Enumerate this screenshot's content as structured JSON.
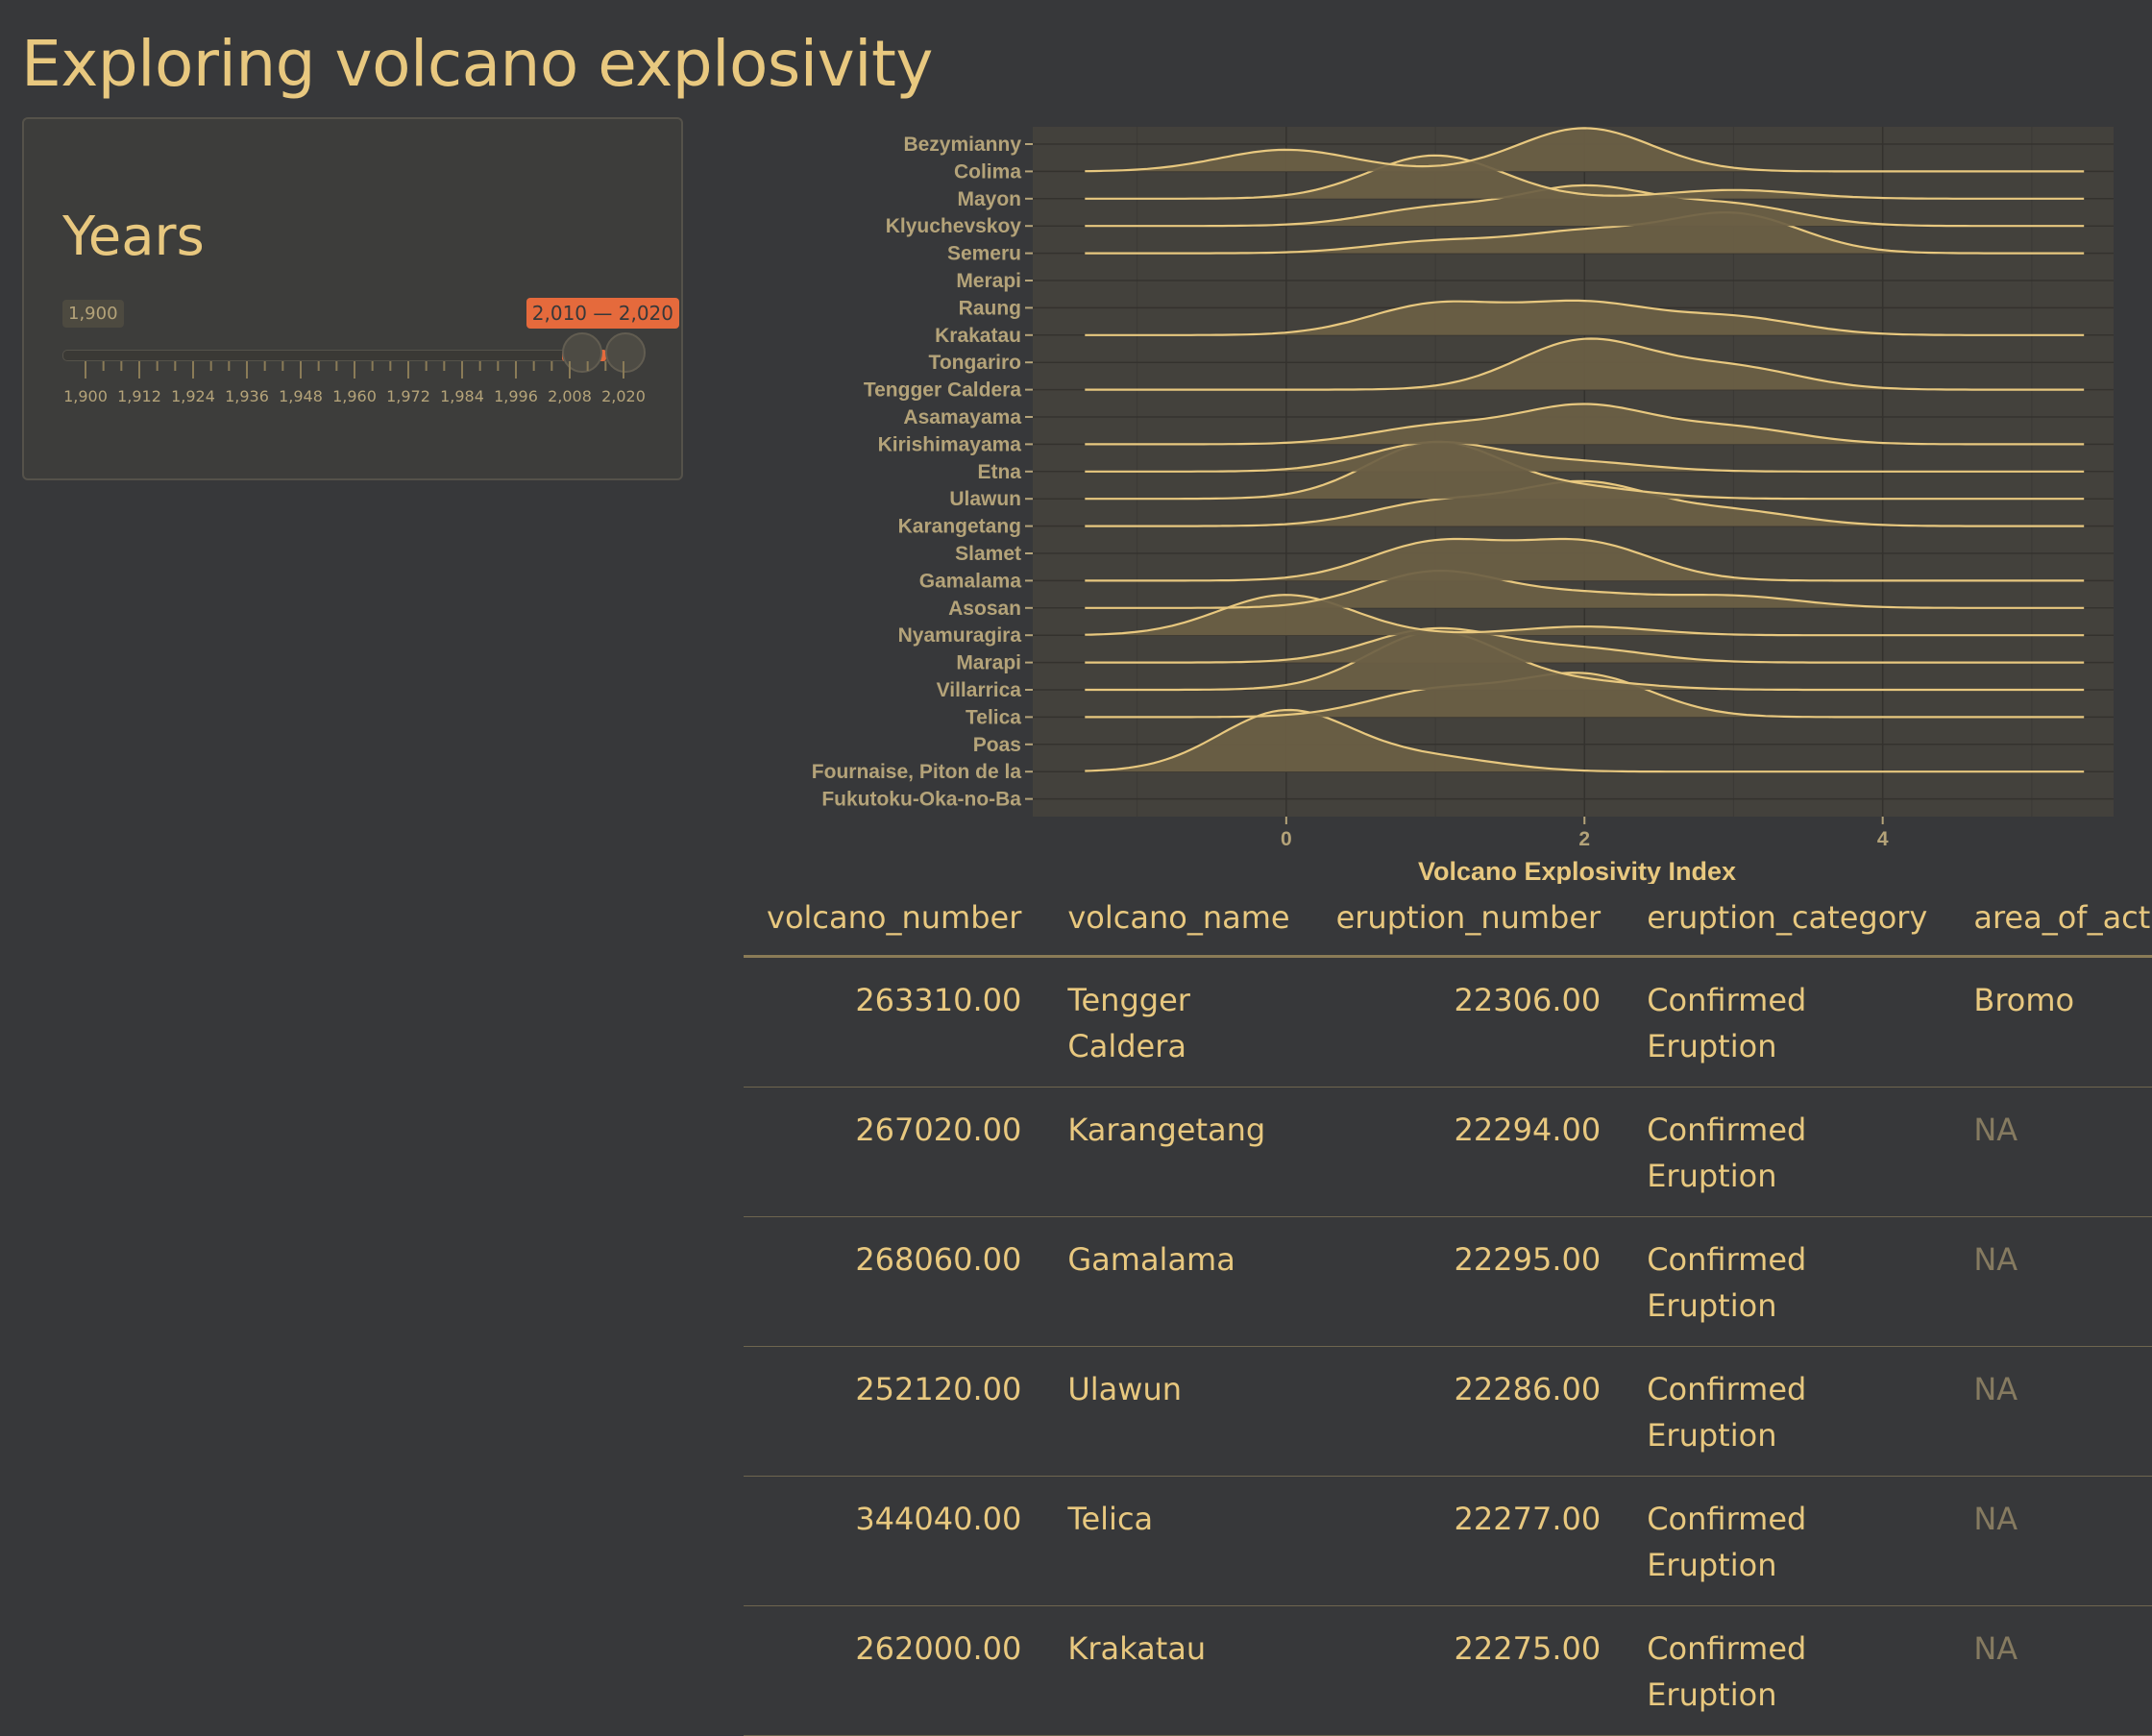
{
  "page": {
    "title": "Exploring volcano explosivity"
  },
  "slider": {
    "label": "Years",
    "min_label": "1,900",
    "range_label": "2,010 — 2,020",
    "range": [
      2010,
      2020
    ],
    "bounds": [
      1900,
      2020
    ],
    "ticks": [
      "1,900",
      "1,912",
      "1,924",
      "1,936",
      "1,948",
      "1,960",
      "1,972",
      "1,984",
      "1,996",
      "2,008",
      "2,020"
    ],
    "accent": "#e56a3c"
  },
  "chart_data": {
    "type": "ridgeline",
    "xlabel": "Volcano Explosivity Index",
    "ylabel": "",
    "x_ticks": [
      "0",
      "2",
      "4"
    ],
    "x_tick_values": [
      0,
      2,
      4
    ],
    "xlim": [
      -1.7,
      5.6
    ],
    "density_range": [
      -1.35,
      5.35
    ],
    "fill_color": "#6b5f45",
    "line_color": "#e8c87f",
    "categories": [
      "Bezymianny",
      "Colima",
      "Mayon",
      "Klyuchevskoy",
      "Semeru",
      "Merapi",
      "Raung",
      "Krakatau",
      "Tongariro",
      "Tengger Caldera",
      "Asamayama",
      "Kirishimayama",
      "Etna",
      "Ulawun",
      "Karangetang",
      "Slamet",
      "Gamalama",
      "Asosan",
      "Nyamuragira",
      "Marapi",
      "Villarrica",
      "Telica",
      "Poas",
      "Fournaise, Piton de la",
      "Fukutoku-Oka-no-Ba"
    ],
    "series": [
      {
        "category": "Colima",
        "peaks": [
          [
            0,
            0.75
          ],
          [
            2,
            1.5
          ]
        ]
      },
      {
        "category": "Mayon",
        "peaks": [
          [
            1,
            1.5
          ],
          [
            3,
            0.3
          ]
        ]
      },
      {
        "category": "Klyuchevskoy",
        "peaks": [
          [
            1,
            0.6
          ],
          [
            2,
            1.3
          ],
          [
            3,
            0.7
          ]
        ]
      },
      {
        "category": "Semeru",
        "peaks": [
          [
            1,
            0.4
          ],
          [
            2,
            0.7
          ],
          [
            3,
            1.35
          ]
        ]
      },
      {
        "category": "Krakatau",
        "peaks": [
          [
            1,
            1.05
          ],
          [
            2,
            1.05
          ],
          [
            3,
            0.6
          ]
        ]
      },
      {
        "category": "Tengger Caldera",
        "peaks": [
          [
            2,
            1.7
          ],
          [
            3,
            0.75
          ]
        ]
      },
      {
        "category": "Kirishimayama",
        "peaks": [
          [
            1,
            0.6
          ],
          [
            2,
            1.3
          ],
          [
            3,
            0.55
          ]
        ]
      },
      {
        "category": "Etna",
        "peaks": [
          [
            1,
            1.0
          ],
          [
            2,
            0.3
          ]
        ]
      },
      {
        "category": "Ulawun",
        "peaks": [
          [
            1,
            1.95
          ],
          [
            2,
            0.35
          ]
        ]
      },
      {
        "category": "Karangetang",
        "peaks": [
          [
            1,
            0.8
          ],
          [
            2,
            1.45
          ],
          [
            3,
            0.5
          ]
        ]
      },
      {
        "category": "Gamalama",
        "peaks": [
          [
            1,
            1.3
          ],
          [
            2,
            1.3
          ]
        ]
      },
      {
        "category": "Asosan",
        "peaks": [
          [
            1,
            1.25
          ],
          [
            2,
            0.45
          ],
          [
            3,
            0.4
          ]
        ]
      },
      {
        "category": "Nyamuragira",
        "peaks": [
          [
            0,
            1.4
          ],
          [
            2,
            0.3
          ]
        ]
      },
      {
        "category": "Marapi",
        "peaks": [
          [
            1,
            1.15
          ],
          [
            2,
            0.45
          ]
        ]
      },
      {
        "category": "Villarrica",
        "peaks": [
          [
            1,
            2.0
          ],
          [
            2,
            0.25
          ]
        ]
      },
      {
        "category": "Telica",
        "peaks": [
          [
            1,
            0.9
          ],
          [
            2,
            1.45
          ]
        ]
      },
      {
        "category": "Fournaise, Piton de la",
        "peaks": [
          [
            0,
            2.1
          ],
          [
            1,
            0.45
          ]
        ]
      }
    ]
  },
  "table": {
    "columns": [
      "volcano_number",
      "volcano_name",
      "eruption_number",
      "eruption_category",
      "area_of_activity"
    ],
    "rows": [
      [
        "263310.00",
        "Tengger\nCaldera",
        "22306.00",
        "Confirmed\nEruption",
        "Bromo"
      ],
      [
        "267020.00",
        "Karangetang",
        "22294.00",
        "Confirmed\nEruption",
        "NA"
      ],
      [
        "268060.00",
        "Gamalama",
        "22295.00",
        "Confirmed\nEruption",
        "NA"
      ],
      [
        "252120.00",
        "Ulawun",
        "22286.00",
        "Confirmed\nEruption",
        "NA"
      ],
      [
        "344040.00",
        "Telica",
        "22277.00",
        "Confirmed\nEruption",
        "NA"
      ],
      [
        "262000.00",
        "Krakatau",
        "22275.00",
        "Confirmed\nEruption",
        "NA"
      ]
    ]
  }
}
